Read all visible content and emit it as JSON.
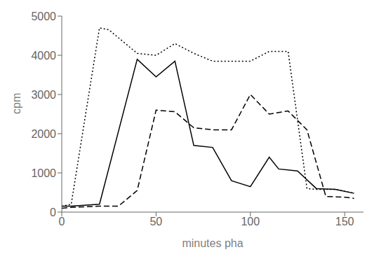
{
  "chart_data": {
    "type": "line",
    "xlabel": "minutes pha",
    "ylabel": "cpm",
    "xlim": [
      0,
      160
    ],
    "ylim": [
      0,
      5000
    ],
    "xticks": [
      0,
      50,
      100,
      150
    ],
    "yticks": [
      0,
      1000,
      2000,
      3000,
      4000,
      5000
    ],
    "grid": false,
    "series": [
      {
        "color": "#000000",
        "line_style": "solid",
        "x": [
          0,
          5,
          20,
          40,
          50,
          60,
          70,
          80,
          90,
          100,
          110,
          115,
          125,
          135,
          145,
          155
        ],
        "values": [
          150,
          150,
          200,
          3900,
          3450,
          3850,
          1700,
          1650,
          800,
          650,
          1400,
          1100,
          1050,
          600,
          580,
          480
        ]
      },
      {
        "color": "#000000",
        "line_style": "dotted",
        "x": [
          0,
          5,
          20,
          25,
          40,
          50,
          60,
          70,
          80,
          90,
          100,
          110,
          120,
          130,
          135,
          145,
          155
        ],
        "values": [
          150,
          200,
          4700,
          4650,
          4050,
          4000,
          4300,
          4050,
          3850,
          3850,
          3850,
          4100,
          4100,
          600,
          580,
          580,
          480
        ]
      },
      {
        "color": "#000000",
        "line_style": "dashed",
        "x": [
          0,
          5,
          20,
          30,
          40,
          50,
          60,
          70,
          80,
          90,
          100,
          110,
          120,
          130,
          140,
          150,
          155
        ],
        "values": [
          100,
          120,
          150,
          150,
          550,
          2600,
          2560,
          2150,
          2100,
          2100,
          3000,
          2500,
          2580,
          2100,
          400,
          380,
          350
        ]
      }
    ]
  }
}
